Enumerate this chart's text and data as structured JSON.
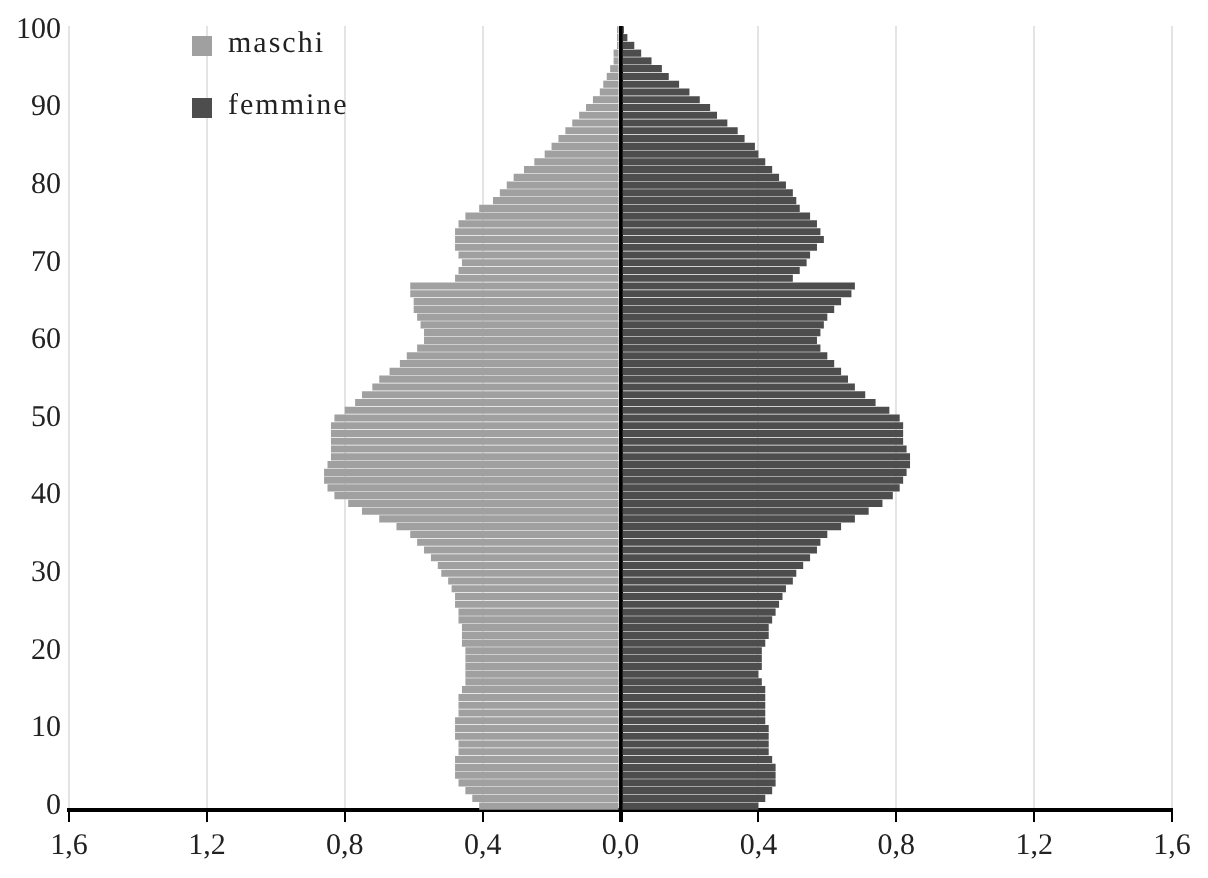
{
  "chart_data": {
    "type": "bar",
    "orientation": "horizontal",
    "stacked": true,
    "grid": "x",
    "legend": "top left",
    "categories": [
      "100",
      null,
      null,
      null,
      null,
      null,
      null,
      null,
      null,
      null,
      "90",
      null,
      null,
      null,
      null,
      null,
      null,
      null,
      null,
      null,
      "80",
      null,
      null,
      null,
      null,
      null,
      null,
      null,
      null,
      null,
      "70",
      null,
      null,
      null,
      null,
      null,
      null,
      null,
      null,
      null,
      "60",
      null,
      null,
      null,
      null,
      null,
      null,
      null,
      null,
      null,
      "50",
      null,
      null,
      null,
      null,
      null,
      null,
      null,
      null,
      null,
      "40",
      null,
      null,
      null,
      null,
      null,
      null,
      null,
      null,
      null,
      "30",
      null,
      null,
      null,
      null,
      null,
      null,
      null,
      null,
      null,
      "20",
      null,
      null,
      null,
      null,
      null,
      null,
      null,
      null,
      null,
      "10",
      null,
      null,
      null,
      null,
      null,
      null,
      null,
      null,
      null,
      "0"
    ],
    "xlim": [
      -1.6,
      1.6
    ],
    "xticks": [
      {
        "value": -1.6,
        "label": "1,6"
      },
      {
        "value": -1.2,
        "label": "1,2"
      },
      {
        "value": -0.8,
        "label": "0,8"
      },
      {
        "value": -0.4,
        "label": "0,4"
      },
      {
        "value": 0,
        "label": "0,0"
      },
      {
        "value": 0.4,
        "label": "0,4"
      },
      {
        "value": 0.8,
        "label": "0,8"
      },
      {
        "value": 1.2,
        "label": "1,2"
      },
      {
        "value": 1.6,
        "label": "1,6"
      }
    ],
    "series": [
      {
        "name": "maschi",
        "color": "#a0a0a0",
        "values": [
          -0.01,
          -0.01,
          -0.01,
          -0.02,
          -0.02,
          -0.03,
          -0.04,
          -0.05,
          -0.06,
          -0.08,
          -0.1,
          -0.12,
          -0.14,
          -0.16,
          -0.18,
          -0.2,
          -0.22,
          -0.25,
          -0.28,
          -0.31,
          -0.33,
          -0.35,
          -0.37,
          -0.41,
          -0.45,
          -0.47,
          -0.48,
          -0.48,
          -0.48,
          -0.47,
          -0.46,
          -0.47,
          -0.48,
          -0.61,
          -0.61,
          -0.6,
          -0.6,
          -0.59,
          -0.58,
          -0.57,
          -0.57,
          -0.59,
          -0.62,
          -0.64,
          -0.67,
          -0.7,
          -0.72,
          -0.75,
          -0.77,
          -0.8,
          -0.83,
          -0.84,
          -0.84,
          -0.84,
          -0.84,
          -0.84,
          -0.85,
          -0.86,
          -0.86,
          -0.85,
          -0.83,
          -0.79,
          -0.75,
          -0.7,
          -0.65,
          -0.61,
          -0.59,
          -0.57,
          -0.55,
          -0.53,
          -0.52,
          -0.5,
          -0.49,
          -0.48,
          -0.48,
          -0.47,
          -0.47,
          -0.46,
          -0.46,
          -0.46,
          -0.45,
          -0.45,
          -0.45,
          -0.45,
          -0.45,
          -0.46,
          -0.47,
          -0.47,
          -0.47,
          -0.48,
          -0.48,
          -0.48,
          -0.47,
          -0.47,
          -0.48,
          -0.48,
          -0.48,
          -0.47,
          -0.45,
          -0.43,
          -0.41
        ]
      },
      {
        "name": "femmine",
        "color": "#4d4d4d",
        "values": [
          0.01,
          0.02,
          0.04,
          0.06,
          0.09,
          0.12,
          0.14,
          0.17,
          0.2,
          0.23,
          0.26,
          0.28,
          0.31,
          0.34,
          0.36,
          0.39,
          0.4,
          0.42,
          0.44,
          0.46,
          0.48,
          0.5,
          0.51,
          0.52,
          0.55,
          0.57,
          0.58,
          0.59,
          0.57,
          0.55,
          0.54,
          0.52,
          0.5,
          0.68,
          0.67,
          0.64,
          0.62,
          0.6,
          0.59,
          0.58,
          0.57,
          0.58,
          0.6,
          0.62,
          0.64,
          0.66,
          0.68,
          0.71,
          0.74,
          0.78,
          0.81,
          0.82,
          0.82,
          0.82,
          0.83,
          0.84,
          0.84,
          0.83,
          0.82,
          0.81,
          0.79,
          0.76,
          0.72,
          0.68,
          0.64,
          0.6,
          0.58,
          0.57,
          0.55,
          0.53,
          0.51,
          0.5,
          0.48,
          0.47,
          0.46,
          0.45,
          0.44,
          0.43,
          0.43,
          0.42,
          0.41,
          0.41,
          0.41,
          0.4,
          0.41,
          0.42,
          0.42,
          0.42,
          0.42,
          0.42,
          0.43,
          0.43,
          0.43,
          0.43,
          0.44,
          0.45,
          0.45,
          0.45,
          0.44,
          0.42,
          0.4
        ]
      }
    ]
  }
}
